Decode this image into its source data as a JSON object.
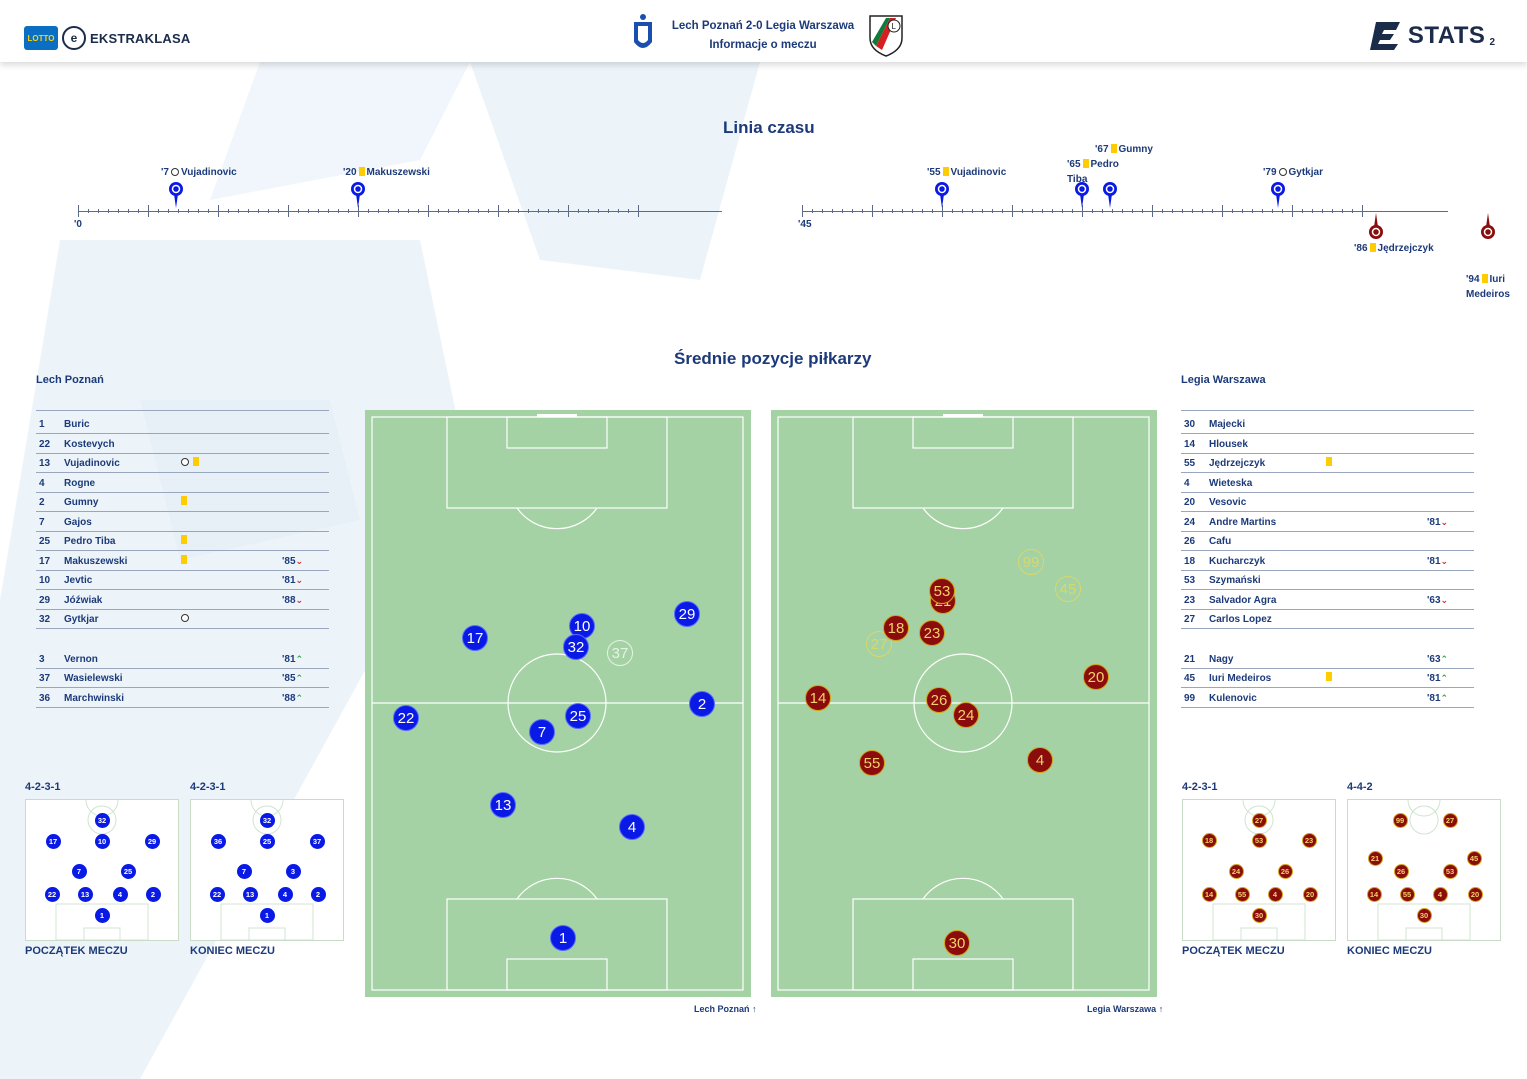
{
  "header": {
    "league_logo_text": "EKSTRAKLASA",
    "lotto_text": "LOTTO",
    "match_title": "Lech Poznań 2-0 Legia Warszawa",
    "match_subtitle": "Informacje o meczu",
    "stats_logo_text": "STATS",
    "page_number": "2"
  },
  "timeline": {
    "title": "Linia czasu",
    "first_half_start": "'0",
    "second_half_start": "'45",
    "events": [
      {
        "minute": "'7",
        "type": "goal",
        "player": "Vujadinovic",
        "team": "Lech"
      },
      {
        "minute": "'20",
        "type": "yellow",
        "player": "Makuszewski",
        "team": "Lech"
      },
      {
        "minute": "'55",
        "type": "yellow",
        "player": "Vujadinovic",
        "team": "Lech"
      },
      {
        "minute": "'65",
        "type": "yellow",
        "player": "Pedro Tiba",
        "team": "Lech"
      },
      {
        "minute": "'67",
        "type": "yellow",
        "player": "Gumny",
        "team": "Lech"
      },
      {
        "minute": "'79",
        "type": "goal",
        "player": "Gytkjar",
        "team": "Lech"
      },
      {
        "minute": "'86",
        "type": "yellow",
        "player": "Jędrzejczyk",
        "team": "Legia"
      },
      {
        "minute": "'94",
        "type": "yellow",
        "player": "Iuri Medeiros",
        "team": "Legia"
      }
    ]
  },
  "positions": {
    "title": "Średnie pozycje piłkarzy",
    "home_caption": "Lech Poznań",
    "away_caption": "Legia Warszawa"
  },
  "home_roster": {
    "team": "Lech Poznań",
    "starters": [
      {
        "num": "1",
        "name": "Buric",
        "icons": "",
        "sub": ""
      },
      {
        "num": "22",
        "name": "Kostevych",
        "icons": "",
        "sub": ""
      },
      {
        "num": "13",
        "name": "Vujadinovic",
        "icons": "goal+yellow",
        "sub": ""
      },
      {
        "num": "4",
        "name": "Rogne",
        "icons": "",
        "sub": ""
      },
      {
        "num": "2",
        "name": "Gumny",
        "icons": "yellow",
        "sub": ""
      },
      {
        "num": "7",
        "name": "Gajos",
        "icons": "",
        "sub": ""
      },
      {
        "num": "25",
        "name": "Pedro Tiba",
        "icons": "yellow",
        "sub": ""
      },
      {
        "num": "17",
        "name": "Makuszewski",
        "icons": "yellow",
        "sub": "'85",
        "dir": "down"
      },
      {
        "num": "10",
        "name": "Jevtic",
        "icons": "",
        "sub": "'81",
        "dir": "down"
      },
      {
        "num": "29",
        "name": "Jóźwiak",
        "icons": "",
        "sub": "'88",
        "dir": "down"
      },
      {
        "num": "32",
        "name": "Gytkjar",
        "icons": "goal",
        "sub": ""
      }
    ],
    "subs": [
      {
        "num": "3",
        "name": "Vernon",
        "icons": "",
        "sub": "'81",
        "dir": "up"
      },
      {
        "num": "37",
        "name": "Wasielewski",
        "icons": "",
        "sub": "'85",
        "dir": "up"
      },
      {
        "num": "36",
        "name": "Marchwinski",
        "icons": "",
        "sub": "'88",
        "dir": "up"
      }
    ]
  },
  "away_roster": {
    "team": "Legia Warszawa",
    "starters": [
      {
        "num": "30",
        "name": "Majecki",
        "icons": "",
        "sub": ""
      },
      {
        "num": "14",
        "name": "Hlousek",
        "icons": "",
        "sub": ""
      },
      {
        "num": "55",
        "name": "Jędrzejczyk",
        "icons": "yellow",
        "sub": ""
      },
      {
        "num": "4",
        "name": "Wieteska",
        "icons": "",
        "sub": ""
      },
      {
        "num": "20",
        "name": "Vesovic",
        "icons": "",
        "sub": ""
      },
      {
        "num": "24",
        "name": "Andre Martins",
        "icons": "",
        "sub": "'81",
        "dir": "down"
      },
      {
        "num": "26",
        "name": "Cafu",
        "icons": "",
        "sub": ""
      },
      {
        "num": "18",
        "name": "Kucharczyk",
        "icons": "",
        "sub": "'81",
        "dir": "down"
      },
      {
        "num": "53",
        "name": "Szymański",
        "icons": "",
        "sub": ""
      },
      {
        "num": "23",
        "name": "Salvador Agra",
        "icons": "",
        "sub": "'63",
        "dir": "down"
      },
      {
        "num": "27",
        "name": "Carlos Lopez",
        "icons": "",
        "sub": ""
      }
    ],
    "subs": [
      {
        "num": "21",
        "name": "Nagy",
        "icons": "",
        "sub": "'63",
        "dir": "up"
      },
      {
        "num": "45",
        "name": "Iuri Medeiros",
        "icons": "yellow",
        "sub": "'81",
        "dir": "up"
      },
      {
        "num": "99",
        "name": "Kulenovic",
        "icons": "",
        "sub": "'81",
        "dir": "up"
      }
    ]
  },
  "home_pitch_players": [
    {
      "num": "17",
      "style": "blue"
    },
    {
      "num": "10",
      "style": "blue"
    },
    {
      "num": "32",
      "style": "blue"
    },
    {
      "num": "37",
      "style": "ghost-w"
    },
    {
      "num": "29",
      "style": "blue"
    },
    {
      "num": "22",
      "style": "blue"
    },
    {
      "num": "7",
      "style": "blue"
    },
    {
      "num": "25",
      "style": "blue"
    },
    {
      "num": "2",
      "style": "blue"
    },
    {
      "num": "13",
      "style": "blue"
    },
    {
      "num": "4",
      "style": "blue"
    },
    {
      "num": "1",
      "style": "blue"
    }
  ],
  "away_pitch_players": [
    {
      "num": "99",
      "style": "ghost-y"
    },
    {
      "num": "45",
      "style": "ghost-y"
    },
    {
      "num": "21",
      "style": "red"
    },
    {
      "num": "53",
      "style": "red"
    },
    {
      "num": "27",
      "style": "ghost-y"
    },
    {
      "num": "18",
      "style": "red"
    },
    {
      "num": "23",
      "style": "red"
    },
    {
      "num": "20",
      "style": "red"
    },
    {
      "num": "14",
      "style": "red"
    },
    {
      "num": "26",
      "style": "red"
    },
    {
      "num": "24",
      "style": "red"
    },
    {
      "num": "55",
      "style": "red"
    },
    {
      "num": "4",
      "style": "red"
    },
    {
      "num": "30",
      "style": "red"
    }
  ],
  "formations": {
    "home_start": {
      "name": "4-2-3-1",
      "caption": "POCZĄTEK MECZU"
    },
    "home_end": {
      "name": "4-2-3-1",
      "caption": "KONIEC MECZU"
    },
    "away_start": {
      "name": "4-2-3-1",
      "caption": "POCZĄTEK MECZU"
    },
    "away_end": {
      "name": "4-4-2",
      "caption": "KONIEC MECZU"
    },
    "home_start_players": [
      "32",
      "17",
      "10",
      "29",
      "7",
      "25",
      "22",
      "13",
      "4",
      "2",
      "1"
    ],
    "home_end_players": [
      "32",
      "36",
      "25",
      "37",
      "7",
      "3",
      "22",
      "13",
      "4",
      "2",
      "1"
    ],
    "away_start_players": [
      "27",
      "18",
      "53",
      "23",
      "24",
      "26",
      "14",
      "55",
      "4",
      "20",
      "30"
    ],
    "away_end_players": [
      "99",
      "27",
      "21",
      "26",
      "53",
      "45",
      "14",
      "55",
      "4",
      "20",
      "30"
    ]
  },
  "colors": {
    "home": "#0a1ae6",
    "away": "#8b0c0c",
    "away_outline": "#d4a317",
    "pitch": "#a4d2a4",
    "text": "#1c3a7a",
    "yellow_card": "#ffcc00"
  }
}
